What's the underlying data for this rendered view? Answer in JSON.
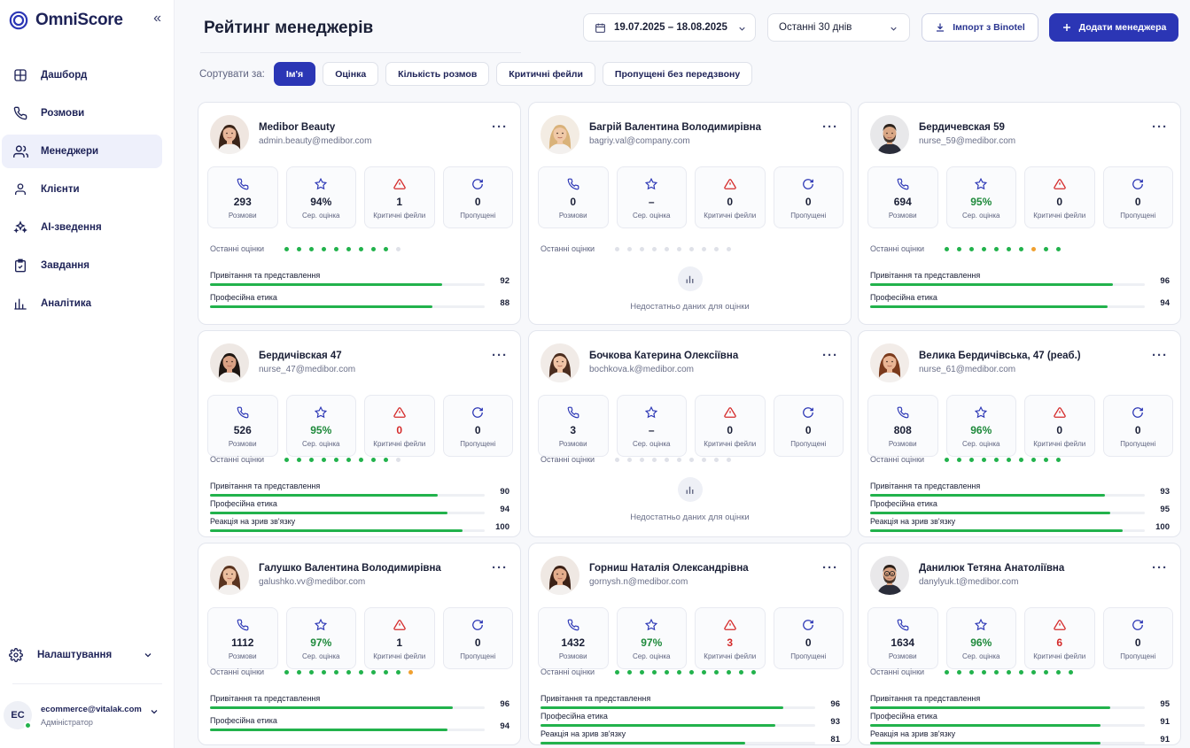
{
  "app": {
    "name": "OmniScore"
  },
  "sidebar": {
    "items": [
      {
        "label": "Дашборд",
        "icon": "dashboard-icon"
      },
      {
        "label": "Розмови",
        "icon": "phone-icon"
      },
      {
        "label": "Менеджери",
        "icon": "users-icon",
        "active": true
      },
      {
        "label": "Клієнти",
        "icon": "user-icon"
      },
      {
        "label": "AI-зведення",
        "icon": "sparkles-icon"
      },
      {
        "label": "Завдання",
        "icon": "clipboard-check-icon"
      },
      {
        "label": "Аналітика",
        "icon": "bar-chart-icon"
      }
    ],
    "settings_label": "Налаштування",
    "user": {
      "initials": "EC",
      "email": "ecommerce@vitalak.com",
      "role": "Адміністратор"
    }
  },
  "header": {
    "title": "Рейтинг менеджерів",
    "date_range": "19.07.2025 – 18.08.2025",
    "period": "Останні 30 днів",
    "import_label": "Імпорт з Binotel",
    "add_label": "Додати менеджера"
  },
  "sort": {
    "label": "Сортувати за:",
    "options": [
      "Ім'я",
      "Оцінка",
      "Кількість розмов",
      "Критичні фейли",
      "Пропущені без передзвону"
    ],
    "active_index": 0
  },
  "labels": {
    "calls": "Розмови",
    "score": "Сер. оцінка",
    "fails": "Критичні фейли",
    "missed": "Пропущені",
    "recent": "Останні оцінки",
    "no_data": "Недостатньо даних для оцінки"
  },
  "colors": {
    "accent": "#2b36b5",
    "success": "#22b24c",
    "danger": "#d42a2a",
    "warning": "#f0a030"
  },
  "managers": [
    {
      "name": "Medibor Beauty",
      "email": "admin.beauty@medibor.com",
      "calls": "293",
      "score": "94%",
      "fails": "1",
      "missed": "0",
      "dots": [
        "g",
        "g",
        "g",
        "g",
        "g",
        "g",
        "g",
        "g",
        "g",
        "x"
      ],
      "metrics": [
        {
          "label": "Привітання та представлення",
          "value": 92
        },
        {
          "label": "Професійна етика",
          "value": 88
        }
      ]
    },
    {
      "name": "Багрій Валентина Володимирівна",
      "email": "bagriy.val@company.com",
      "calls": "0",
      "score": "–",
      "fails": "0",
      "missed": "0",
      "dots": [
        "x",
        "x",
        "x",
        "x",
        "x",
        "x",
        "x",
        "x",
        "x",
        "x"
      ],
      "no_data": true,
      "metrics": []
    },
    {
      "name": "Бердичевская 59",
      "email": "nurse_59@medibor.com",
      "calls": "694",
      "score": "95%",
      "fails": "0",
      "missed": "0",
      "dots": [
        "g",
        "g",
        "g",
        "g",
        "g",
        "g",
        "g",
        "o",
        "g",
        "g"
      ],
      "metrics": [
        {
          "label": "Привітання та представлення",
          "value": 96
        },
        {
          "label": "Професійна етика",
          "value": 94
        }
      ]
    },
    {
      "name": "Бердичівская 47",
      "email": "nurse_47@medibor.com",
      "calls": "526",
      "score": "95%",
      "fails": "0",
      "missed": "0",
      "dots": [
        "g",
        "g",
        "g",
        "g",
        "g",
        "g",
        "g",
        "g",
        "g",
        "x"
      ],
      "metrics": [
        {
          "label": "Привітання та представлення",
          "value": 90
        },
        {
          "label": "Професійна етика",
          "value": 94
        },
        {
          "label": "Реакція на зрив зв'язку",
          "value": 100
        }
      ]
    },
    {
      "name": "Бочкова Катерина Олексіївна",
      "email": "bochkova.k@medibor.com",
      "calls": "3",
      "score": "–",
      "fails": "0",
      "missed": "0",
      "dots": [
        "x",
        "x",
        "x",
        "x",
        "x",
        "x",
        "x",
        "x",
        "x",
        "x"
      ],
      "no_data": true,
      "metrics": []
    },
    {
      "name": "Велика Бердичівська, 47 (реаб.)",
      "email": "nurse_61@medibor.com",
      "calls": "808",
      "score": "96%",
      "fails": "0",
      "missed": "0",
      "dots": [
        "g",
        "g",
        "g",
        "g",
        "g",
        "g",
        "g",
        "g",
        "g",
        "g"
      ],
      "metrics": [
        {
          "label": "Привітання та представлення",
          "value": 93
        },
        {
          "label": "Професійна етика",
          "value": 95
        },
        {
          "label": "Реакція на зрив зв'язку",
          "value": 100
        }
      ]
    },
    {
      "name": "Галушко Валентина Володимирівна",
      "email": "galushko.vv@medibor.com",
      "calls": "1112",
      "score": "97%",
      "fails": "1",
      "missed": "0",
      "dots": [
        "g",
        "g",
        "g",
        "g",
        "g",
        "g",
        "g",
        "g",
        "g",
        "g",
        "o"
      ],
      "metrics": [
        {
          "label": "Привітання та представлення",
          "value": 96
        },
        {
          "label": "Професійна етика",
          "value": 94
        }
      ]
    },
    {
      "name": "Горниш Наталія Олександрівна",
      "email": "gornysh.n@medibor.com",
      "calls": "1432",
      "score": "97%",
      "fails": "3",
      "missed": "0",
      "dots": [
        "g",
        "g",
        "g",
        "g",
        "g",
        "g",
        "g",
        "g",
        "g",
        "g",
        "g",
        "g"
      ],
      "metrics": [
        {
          "label": "Привітання та представлення",
          "value": 96
        },
        {
          "label": "Професійна етика",
          "value": 93
        },
        {
          "label": "Реакція на зрив зв'язку",
          "value": 81
        }
      ]
    },
    {
      "name": "Данилюк Тетяна Анатоліївна",
      "email": "danylyuk.t@medibor.com",
      "calls": "1634",
      "score": "96%",
      "fails": "6",
      "missed": "0",
      "dots": [
        "g",
        "g",
        "g",
        "g",
        "g",
        "g",
        "g",
        "g",
        "g",
        "g",
        "g"
      ],
      "metrics": [
        {
          "label": "Привітання та представлення",
          "value": 95
        },
        {
          "label": "Професійна етика",
          "value": 91
        },
        {
          "label": "Реакція на зрив зв'язку",
          "value": 91
        }
      ]
    }
  ]
}
